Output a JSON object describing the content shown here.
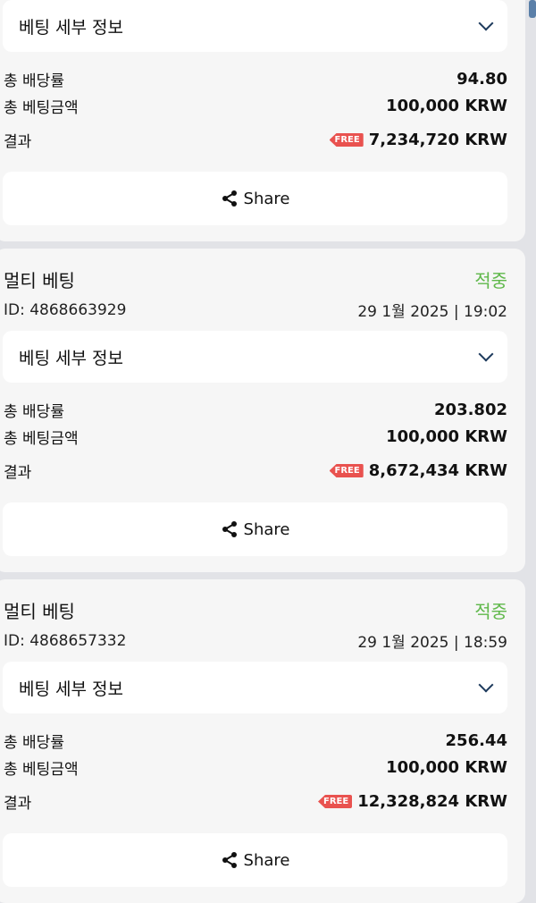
{
  "labels": {
    "details": "베팅 세부 정보",
    "odds": "총 배당률",
    "stake": "총 베팅금액",
    "result": "결과",
    "share": "Share",
    "free": "FREE"
  },
  "bets": [
    {
      "title": "",
      "status": "",
      "id": "",
      "datetime": "",
      "odds": "94.80",
      "stake": "100,000 KRW",
      "result": "7,234,720 KRW"
    },
    {
      "title": "멀티 베팅",
      "status": "적중",
      "id": "ID: 4868663929",
      "datetime": "29 1월 2025 | 19:02",
      "odds": "203.802",
      "stake": "100,000 KRW",
      "result": "8,672,434 KRW"
    },
    {
      "title": "멀티 베팅",
      "status": "적중",
      "id": "ID: 4868657332",
      "datetime": "29 1월 2025 | 18:59",
      "odds": "256.44",
      "stake": "100,000 KRW",
      "result": "12,328,824 KRW"
    }
  ],
  "colors": {
    "status": "#5fb84a",
    "free_tag": "#e9524f",
    "chevron": "#1d3a5c"
  }
}
